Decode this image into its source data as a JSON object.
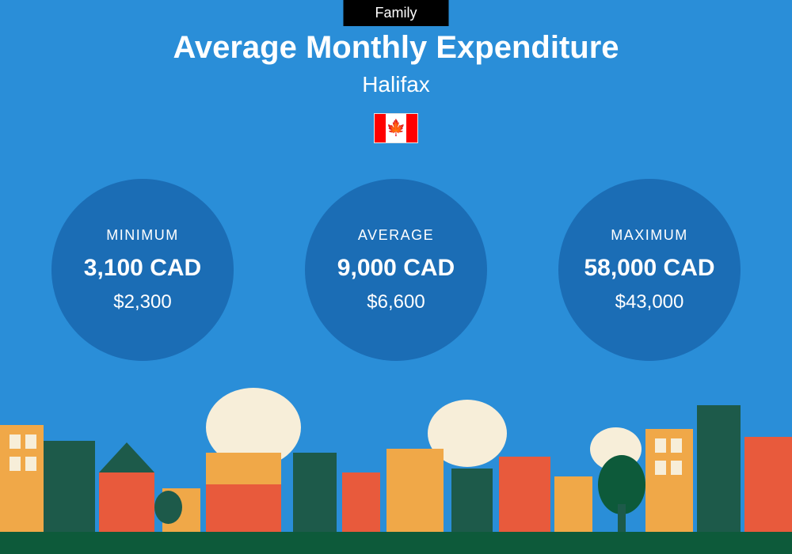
{
  "badge": "Family",
  "title": "Average Monthly Expenditure",
  "city": "Halifax",
  "country_flag": "canada",
  "background_color": "#2a8ed8",
  "circle_color": "#1b6db5",
  "badge_bg": "#000000",
  "badge_text_color": "#ffffff",
  "text_color": "#ffffff",
  "stats": [
    {
      "label": "MINIMUM",
      "value_local": "3,100 CAD",
      "value_usd": "$2,300"
    },
    {
      "label": "AVERAGE",
      "value_local": "9,000 CAD",
      "value_usd": "$6,600"
    },
    {
      "label": "MAXIMUM",
      "value_local": "58,000 CAD",
      "value_usd": "$43,000"
    }
  ],
  "cityscape": {
    "ground_color": "#0d5a3a",
    "cloud_color": "#f7eed9",
    "building_colors": [
      "#f0a848",
      "#1d5a4a",
      "#e85a3c"
    ],
    "tree_color": "#0d5a3a"
  }
}
